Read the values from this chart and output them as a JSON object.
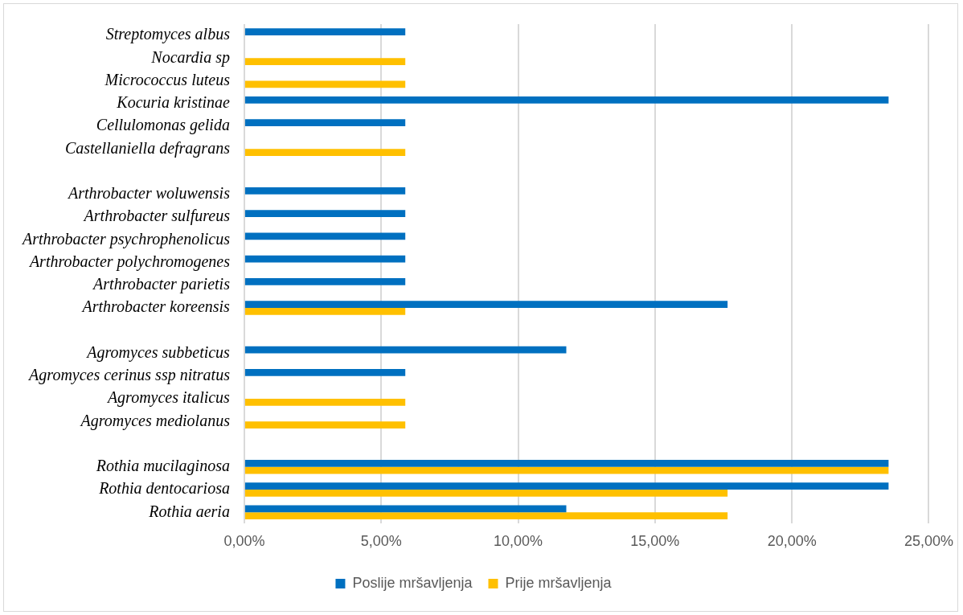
{
  "chart_data": {
    "type": "bar",
    "orientation": "horizontal",
    "categories": [
      "Streptomyces albus",
      "Nocardia sp",
      "Micrococcus luteus",
      "Kocuria kristinae",
      "Cellulomonas gelida",
      "Castellaniella defragrans",
      null,
      "Arthrobacter woluwensis",
      "Arthrobacter sulfureus",
      "Arthrobacter psychrophenolicus",
      "Arthrobacter polychromogenes",
      "Arthrobacter parietis",
      "Arthrobacter koreensis",
      null,
      "Agromyces subbeticus",
      "Agromyces cerinus ssp nitratus",
      "Agromyces italicus",
      "Agromyces mediolanus",
      null,
      "Rothia mucilaginosa",
      "Rothia dentocariosa",
      "Rothia aeria"
    ],
    "series": [
      {
        "name": "Poslije mršavljenja",
        "color": "#0070c0",
        "values": [
          5.88,
          null,
          null,
          23.53,
          5.88,
          null,
          null,
          5.88,
          5.88,
          5.88,
          5.88,
          5.88,
          17.65,
          null,
          11.76,
          5.88,
          null,
          null,
          null,
          23.53,
          23.53,
          11.76
        ]
      },
      {
        "name": "Prije mršavljenja",
        "color": "#ffc000",
        "values": [
          null,
          5.88,
          5.88,
          null,
          null,
          5.88,
          null,
          null,
          null,
          null,
          null,
          null,
          5.88,
          null,
          null,
          null,
          5.88,
          5.88,
          null,
          23.53,
          17.65,
          17.65
        ]
      }
    ],
    "xlim": [
      0,
      25
    ],
    "xticks": [
      {
        "value": 0,
        "label": "0,00%"
      },
      {
        "value": 5,
        "label": "5,00%"
      },
      {
        "value": 10,
        "label": "10,00%"
      },
      {
        "value": 15,
        "label": "15,00%"
      },
      {
        "value": 20,
        "label": "20,00%"
      },
      {
        "value": 25,
        "label": "25,00%"
      }
    ],
    "grid": "x",
    "legend": "bottom"
  }
}
